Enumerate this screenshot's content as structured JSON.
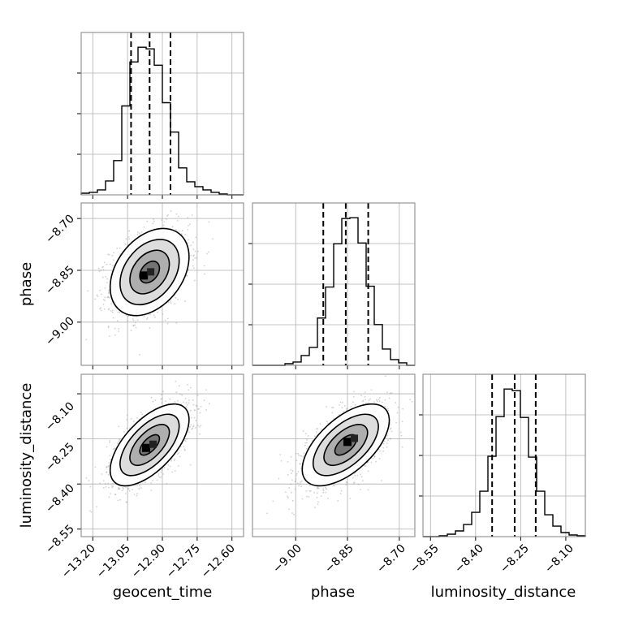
{
  "chart_data": {
    "type": "corner",
    "parameters": [
      "geocent_time",
      "phase",
      "luminosity_distance"
    ],
    "axis_labels": {
      "geocent_time": "geocent_time",
      "phase": "phase",
      "luminosity_distance": "luminosity_distance"
    },
    "ranges": {
      "geocent_time": [
        -13.25,
        -12.55
      ],
      "phase": [
        -9.125,
        -8.655
      ],
      "luminosity_distance": [
        -8.575,
        -8.035
      ]
    },
    "ticks": {
      "geocent_time": [
        -13.2,
        -13.05,
        -12.9,
        -12.75,
        -12.6
      ],
      "phase": [
        -9.0,
        -8.85,
        -8.7
      ],
      "luminosity_distance": [
        -8.55,
        -8.4,
        -8.25,
        -8.1
      ]
    },
    "tick_labels": {
      "geocent_time": [
        "−13.20",
        "−13.05",
        "−12.90",
        "−12.75",
        "−12.60"
      ],
      "phase": [
        "−9.00",
        "−8.85",
        "−8.70"
      ],
      "luminosity_distance": [
        "−8.55",
        "−8.40",
        "−8.25",
        "−8.10"
      ]
    },
    "quantiles": {
      "geocent_time": [
        -13.035,
        -12.955,
        -12.865
      ],
      "phase": [
        -8.92,
        -8.855,
        -8.79
      ],
      "luminosity_distance": [
        -8.345,
        -8.27,
        -8.2
      ]
    },
    "histograms": {
      "geocent_time": {
        "edges": [
          -13.25,
          -13.215,
          -13.18,
          -13.145,
          -13.11,
          -13.075,
          -13.04,
          -13.005,
          -12.97,
          -12.935,
          -12.9,
          -12.865,
          -12.83,
          -12.795,
          -12.76,
          -12.725,
          -12.69,
          -12.655,
          -12.62,
          -12.585,
          -12.55
        ],
        "counts": [
          2,
          3,
          6,
          17,
          42,
          109,
          163,
          181,
          179,
          159,
          113,
          77,
          33,
          16,
          10,
          6,
          3,
          1,
          0,
          0
        ]
      },
      "phase": {
        "edges": [
          -9.125,
          -9.1015,
          -9.078,
          -9.0545,
          -9.031,
          -9.0075,
          -8.984,
          -8.9605,
          -8.937,
          -8.9135,
          -8.89,
          -8.8665,
          -8.843,
          -8.8195,
          -8.796,
          -8.7725,
          -8.749,
          -8.7255,
          -8.702,
          -8.6785,
          -8.655
        ],
        "counts": [
          0,
          0,
          0,
          0,
          2,
          4,
          12,
          22,
          58,
          96,
          149,
          180,
          181,
          150,
          97,
          50,
          20,
          7,
          3,
          0
        ]
      },
      "luminosity_distance": {
        "edges": [
          -8.575,
          -8.548,
          -8.521,
          -8.494,
          -8.467,
          -8.44,
          -8.413,
          -8.386,
          -8.359,
          -8.332,
          -8.305,
          -8.278,
          -8.251,
          -8.224,
          -8.197,
          -8.17,
          -8.143,
          -8.116,
          -8.089,
          -8.062,
          -8.035
        ],
        "counts": [
          0,
          0,
          1,
          3,
          7,
          15,
          30,
          56,
          99,
          148,
          182,
          180,
          147,
          98,
          56,
          27,
          13,
          5,
          2,
          1
        ]
      }
    },
    "joint": [
      {
        "x": "geocent_time",
        "y": "phase",
        "mean": [
          -12.955,
          -8.855
        ],
        "sd": [
          0.085,
          0.063
        ],
        "corr": 0.35,
        "peak": [
          -12.98,
          -8.865
        ]
      },
      {
        "x": "geocent_time",
        "y": "luminosity_distance",
        "mean": [
          -12.955,
          -8.27
        ],
        "sd": [
          0.085,
          0.068
        ],
        "corr": 0.62,
        "peak": [
          -12.97,
          -8.28
        ]
      },
      {
        "x": "phase",
        "y": "luminosity_distance",
        "mean": [
          -8.855,
          -8.27
        ],
        "sd": [
          0.063,
          0.068
        ],
        "corr": 0.6,
        "peak": [
          -8.85,
          -8.26
        ]
      }
    ],
    "contour_levels_sigma": [
      0.5,
      1.0,
      1.5,
      2.0
    ],
    "grid": true,
    "colors": {
      "line": "#000000",
      "grid": "#b0b0b0",
      "frame": "#808080",
      "points": "#9a9a9a"
    }
  }
}
